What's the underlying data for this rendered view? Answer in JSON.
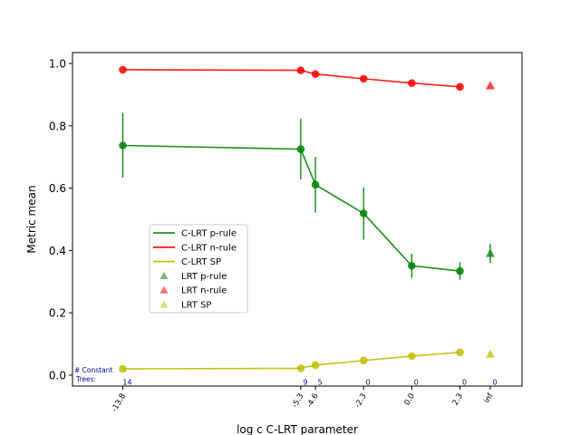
{
  "chart_data": {
    "type": "line",
    "title": "",
    "xlabel": "log c C-LRT parameter",
    "ylabel": "Metric mean",
    "x_tick_labels": [
      "-13.8",
      "-5.3",
      "-4.6",
      "-2.3",
      "0.0",
      "2.3",
      "inf"
    ],
    "ylim": [
      -0.035,
      1.035
    ],
    "y_ticks": [
      0.0,
      0.2,
      0.4,
      0.6,
      0.8,
      1.0
    ],
    "y_tick_labels": [
      "0.0",
      "0.2",
      "0.4",
      "0.6",
      "0.8",
      "1.0"
    ],
    "grid": false,
    "legend_position": "center-left",
    "series": [
      {
        "name": "C-LRT p-rule",
        "color": "#008000",
        "x": [
          "-13.8",
          "-5.3",
          "-4.6",
          "-2.3",
          "0.0",
          "2.3"
        ],
        "values": [
          0.737,
          0.725,
          0.611,
          0.519,
          0.351,
          0.334
        ],
        "err_low": [
          0.634,
          0.628,
          0.522,
          0.435,
          0.312,
          0.306
        ],
        "err_high": [
          0.841,
          0.823,
          0.7,
          0.602,
          0.39,
          0.362
        ]
      },
      {
        "name": "C-LRT n-rule",
        "color": "#ff0000",
        "x": [
          "-13.8",
          "-5.3",
          "-4.6",
          "-2.3",
          "0.0",
          "2.3"
        ],
        "values": [
          0.98,
          0.978,
          0.966,
          0.951,
          0.937,
          0.925
        ]
      },
      {
        "name": "C-LRT SP",
        "color": "#bfbf00",
        "x": [
          "-13.8",
          "-5.3",
          "-4.6",
          "-2.3",
          "0.0",
          "2.3"
        ],
        "values": [
          0.02,
          0.022,
          0.032,
          0.047,
          0.061,
          0.073
        ]
      }
    ],
    "reference_points": [
      {
        "name": "LRT p-rule",
        "color": "#008000",
        "x": "inf",
        "value": 0.391,
        "err_low": 0.36,
        "err_high": 0.422
      },
      {
        "name": "LRT n-rule",
        "color": "#ff0000",
        "x": "inf",
        "value": 0.929
      },
      {
        "name": "LRT SP",
        "color": "#bfbf00",
        "x": "inf",
        "value": 0.068
      }
    ],
    "annotation_label": "# Constant\nTrees:",
    "constant_trees": [
      "14",
      "9",
      "5",
      "0",
      "0",
      "0",
      "0"
    ]
  }
}
